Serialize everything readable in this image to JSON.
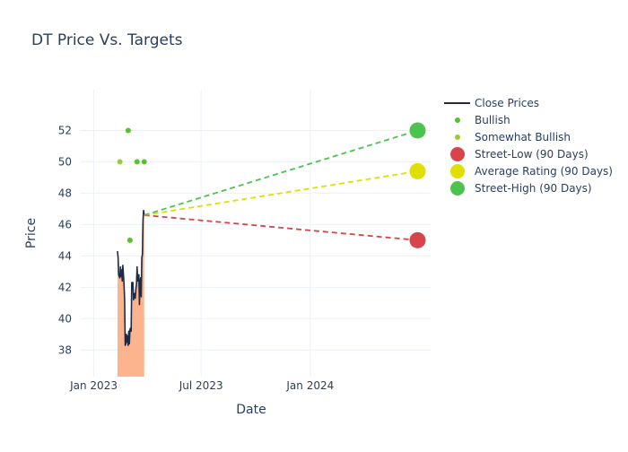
{
  "colors": {
    "close_line": "#1f2a44",
    "close_fill": "#fbb48e",
    "bullish": "#56c22e",
    "somewhat_bullish": "#9acd32",
    "street_low": "#d9434b",
    "average": "#dfdf00",
    "street_high": "#4cc34f",
    "grid": "#ebf0f8",
    "text": "#2a3f5f"
  },
  "chart_data": {
    "type": "line",
    "title": "DT Price Vs. Targets",
    "xlabel": "Date",
    "ylabel": "Price",
    "xlim": [
      "2022-12-10",
      "2024-07-22"
    ],
    "ylim": [
      36.3,
      54.6
    ],
    "x_ticks": [
      {
        "date": "2023-01-01",
        "label": "Jan 2023"
      },
      {
        "date": "2023-07-01",
        "label": "Jul 2023"
      },
      {
        "date": "2024-01-01",
        "label": "Jan 2024"
      }
    ],
    "y_ticks": [
      38,
      40,
      42,
      44,
      46,
      48,
      50,
      52
    ],
    "grid": true,
    "legend_position": "top-right",
    "legend": [
      {
        "key": "close",
        "label": "Close Prices"
      },
      {
        "key": "bullish",
        "label": "Bullish"
      },
      {
        "key": "somewhat_bullish",
        "label": "Somewhat Bullish"
      },
      {
        "key": "street_low",
        "label": "Street-Low (90 Days)"
      },
      {
        "key": "average",
        "label": "Average Rating (90 Days)"
      },
      {
        "key": "street_high",
        "label": "Street-High (90 Days)"
      }
    ],
    "close_prices": {
      "name": "Close Prices",
      "points": [
        [
          "2023-02-10",
          44.3
        ],
        [
          "2023-02-11",
          43.9
        ],
        [
          "2023-02-12",
          42.8
        ],
        [
          "2023-02-14",
          42.6
        ],
        [
          "2023-02-15",
          43.3
        ],
        [
          "2023-02-16",
          42.7
        ],
        [
          "2023-02-17",
          43.1
        ],
        [
          "2023-02-18",
          42.4
        ],
        [
          "2023-02-19",
          43.4
        ],
        [
          "2023-02-20",
          42.8
        ],
        [
          "2023-02-21",
          42.2
        ],
        [
          "2023-02-22",
          41.2
        ],
        [
          "2023-02-23",
          38.3
        ],
        [
          "2023-02-24",
          38.4
        ],
        [
          "2023-02-25",
          39.0
        ],
        [
          "2023-02-26",
          38.5
        ],
        [
          "2023-02-27",
          38.9
        ],
        [
          "2023-02-28",
          38.3
        ],
        [
          "2023-03-01",
          39.2
        ],
        [
          "2023-03-02",
          38.4
        ],
        [
          "2023-03-03",
          39.3
        ],
        [
          "2023-03-04",
          39.4
        ],
        [
          "2023-03-05",
          39.2
        ],
        [
          "2023-03-06",
          42.3
        ],
        [
          "2023-03-08",
          42.3
        ],
        [
          "2023-03-09",
          41.2
        ],
        [
          "2023-03-10",
          41.5
        ],
        [
          "2023-03-11",
          41.6
        ],
        [
          "2023-03-12",
          41.3
        ],
        [
          "2023-03-13",
          41.9
        ],
        [
          "2023-03-14",
          42.2
        ],
        [
          "2023-03-15",
          43.3
        ],
        [
          "2023-03-16",
          42.4
        ],
        [
          "2023-03-17",
          42.6
        ],
        [
          "2023-03-18",
          42.8
        ],
        [
          "2023-03-19",
          40.9
        ],
        [
          "2023-03-20",
          42.3
        ],
        [
          "2023-03-21",
          42.6
        ],
        [
          "2023-03-22",
          41.4
        ],
        [
          "2023-03-23",
          43.9
        ],
        [
          "2023-03-24",
          44.1
        ],
        [
          "2023-03-25",
          46.3
        ],
        [
          "2023-03-26",
          46.9
        ],
        [
          "2023-03-27",
          46.6
        ]
      ]
    },
    "bullish": {
      "name": "Bullish",
      "points": [
        [
          "2023-02-28",
          52
        ],
        [
          "2023-03-03",
          45
        ],
        [
          "2023-03-15",
          50
        ],
        [
          "2023-03-27",
          50
        ]
      ]
    },
    "somewhat_bullish": {
      "name": "Somewhat Bullish",
      "points": [
        [
          "2023-02-14",
          50
        ]
      ]
    },
    "targets": {
      "start_date": "2023-03-27",
      "start_price": 46.6,
      "end_date": "2024-06-30",
      "street_low": 45.0,
      "average": 49.4,
      "street_high": 52.0
    }
  }
}
